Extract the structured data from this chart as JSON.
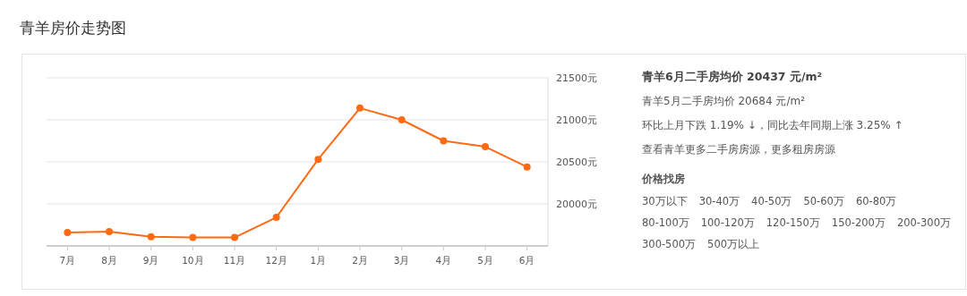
{
  "chart_data": [
    {
      "type": "line",
      "title": "青羊房价走势图",
      "categories": [
        "7月",
        "8月",
        "9月",
        "10月",
        "11月",
        "12月",
        "1月",
        "2月",
        "3月",
        "4月",
        "5月",
        "6月"
      ],
      "series": [
        {
          "color": "#ff6a13",
          "values": [
            19660,
            19670,
            19610,
            19600,
            19600,
            19840,
            20530,
            21140,
            21000,
            20750,
            20680,
            20440
          ]
        }
      ],
      "ylim": [
        19500,
        21500
      ],
      "yticks": [
        {
          "value": 20000,
          "label": "20000元"
        },
        {
          "value": 20500,
          "label": "20500元"
        },
        {
          "value": 21000,
          "label": "21000元"
        },
        {
          "value": 21500,
          "label": "21500元"
        }
      ],
      "grid": "y",
      "marker": "circle"
    },
    {
      "type": "other",
      "title": "青羊6月二手房均价 20437 元/m²",
      "subtitle": "价格找房",
      "annotations": [
        "青羊5月二手房均价 20684 元/m²",
        "环比上月下跌 1.19% ↓，同比去年同期上涨 3.25% ↑",
        "查看青羊更多二手房房源，更多租房房源",
        "30万以下",
        "30-40万",
        "40-50万",
        "50-60万",
        "60-80万",
        "80-100万",
        "100-120万",
        "120-150万",
        "150-200万",
        "200-300万",
        "300-500万",
        "500万以上"
      ]
    }
  ]
}
